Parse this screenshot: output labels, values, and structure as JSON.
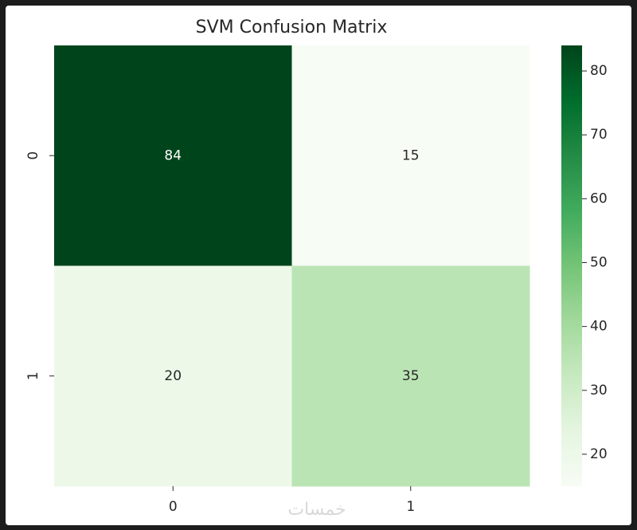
{
  "chart_data": {
    "type": "heatmap",
    "title": "SVM Confusion Matrix",
    "x_categories": [
      "0",
      "1"
    ],
    "y_categories": [
      "0",
      "1"
    ],
    "values": [
      [
        84,
        15
      ],
      [
        20,
        35
      ]
    ],
    "colormap": [
      "#f7fcf5",
      "#e5f5e0",
      "#c7e9c0",
      "#a1d99b",
      "#74c476",
      "#41ab5d",
      "#238b45",
      "#006d2c",
      "#00441b"
    ],
    "clim": [
      15,
      84
    ],
    "cticks": [
      20,
      30,
      40,
      50,
      60,
      70,
      80
    ],
    "watermark": "خمسات"
  }
}
